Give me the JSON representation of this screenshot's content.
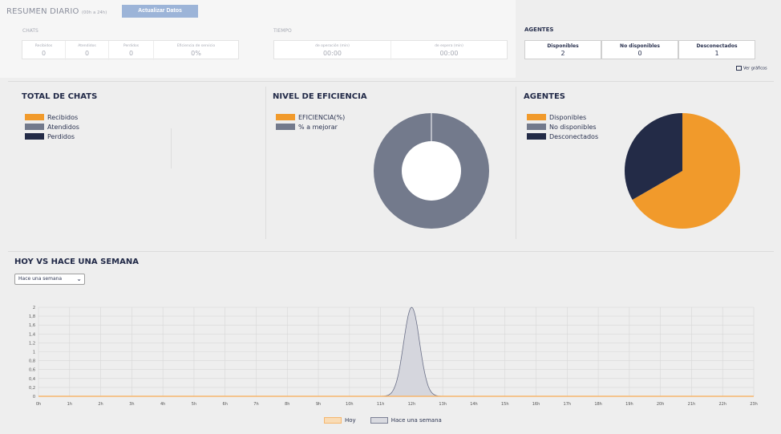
{
  "header": {
    "title": "RESUMEN DIARIO",
    "subtitle": "(00h a 24h)",
    "update_button": "Actualizar Datos"
  },
  "chats": {
    "label": "CHATS",
    "metrics": [
      {
        "label": "Recibidos",
        "value": "0"
      },
      {
        "label": "Atendidos",
        "value": "0"
      },
      {
        "label": "Perdidos",
        "value": "0"
      },
      {
        "label": "Eficiencia de servicio",
        "value": "0%"
      }
    ]
  },
  "tiempo": {
    "label": "TIEMPO",
    "metrics": [
      {
        "label": "de operación (min)",
        "value": "00:00"
      },
      {
        "label": "de espera (min)",
        "value": "00:00"
      }
    ]
  },
  "agents_summary": {
    "title": "AGENTES",
    "items": [
      {
        "label": "Disponibles",
        "value": "2"
      },
      {
        "label": "No disponibles",
        "value": "0"
      },
      {
        "label": "Desconectados",
        "value": "1"
      }
    ],
    "ver_graficos": "Ver gráficos"
  },
  "total_chats": {
    "title": "TOTAL DE CHATS",
    "legend": [
      {
        "label": "Recibidos",
        "color": "#f19a2b"
      },
      {
        "label": "Atendidos",
        "color": "#737a8c"
      },
      {
        "label": "Perdidos",
        "color": "#232b47"
      }
    ]
  },
  "eficiencia": {
    "title": "NIVEL DE EFICIENCIA",
    "legend": [
      {
        "label": "EFICIENCIA(%)",
        "color": "#f19a2b"
      },
      {
        "label": "% a mejorar",
        "color": "#737a8c"
      }
    ]
  },
  "agentes_chart": {
    "title": "AGENTES",
    "legend": [
      {
        "label": "Disponibles",
        "color": "#f19a2b"
      },
      {
        "label": "No disponibles",
        "color": "#737a8c"
      },
      {
        "label": "Desconectados",
        "color": "#232b47"
      }
    ]
  },
  "comparison": {
    "title": "HOY VS HACE UNA SEMANA",
    "select_value": "Hace una semana",
    "legend": [
      {
        "label": "Hoy",
        "color": "#f5b66e"
      },
      {
        "label": "Hace una semana",
        "color": "#7b8094"
      }
    ]
  },
  "chart_data": [
    {
      "type": "pie",
      "title": "NIVEL DE EFICIENCIA",
      "donut": true,
      "categories": [
        "EFICIENCIA(%)",
        "% a mejorar"
      ],
      "values": [
        0,
        100
      ],
      "colors": [
        "#f19a2b",
        "#737a8c"
      ]
    },
    {
      "type": "pie",
      "title": "AGENTES",
      "categories": [
        "Disponibles",
        "No disponibles",
        "Desconectados"
      ],
      "values": [
        2,
        0,
        1
      ],
      "colors": [
        "#f19a2b",
        "#737a8c",
        "#232b47"
      ]
    },
    {
      "type": "area",
      "title": "HOY VS HACE UNA SEMANA",
      "x": [
        "0h",
        "1h",
        "2h",
        "3h",
        "4h",
        "5h",
        "6h",
        "7h",
        "8h",
        "9h",
        "10h",
        "11h",
        "12h",
        "13h",
        "14h",
        "15h",
        "16h",
        "17h",
        "18h",
        "19h",
        "20h",
        "21h",
        "22h",
        "23h"
      ],
      "ylim": [
        0,
        2
      ],
      "yticks": [
        "0",
        "0,2",
        "0,4",
        "0,6",
        "0,8",
        "1",
        "1,2",
        "1,4",
        "1,6",
        "1,8",
        "2"
      ],
      "grid": true,
      "legend_placement": "bottom",
      "series": [
        {
          "name": "Hoy",
          "values": [
            0,
            0,
            0,
            0,
            0,
            0,
            0,
            0,
            0,
            0,
            0,
            0,
            0,
            0,
            0,
            0,
            0,
            0,
            0,
            0,
            0,
            0,
            0,
            0
          ]
        },
        {
          "name": "Hace una semana",
          "values": [
            0,
            0,
            0,
            0,
            0,
            0,
            0,
            0,
            0,
            0,
            0,
            0,
            2,
            0,
            0,
            0,
            0,
            0,
            0,
            0,
            0,
            0,
            0,
            0
          ]
        }
      ]
    }
  ]
}
